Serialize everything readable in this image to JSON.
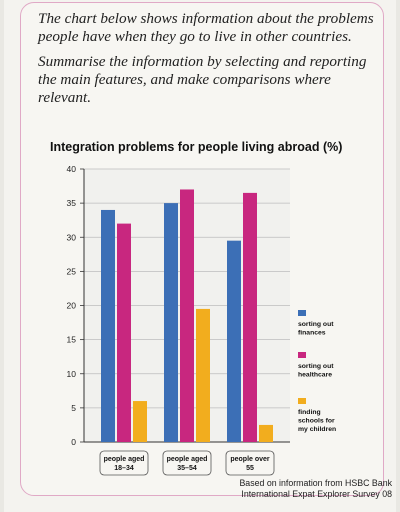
{
  "prompt": {
    "paragraph1": "The chart below shows information about the problems people have when they go to live in other countries.",
    "paragraph2": "Summarise the information by selecting and reporting the main features, and make comparisons where relevant."
  },
  "chart_data": {
    "type": "bar",
    "title": "Integration problems for people living abroad (%)",
    "xlabel": "",
    "ylabel": "",
    "ylim": [
      0,
      40
    ],
    "yticks": [
      0,
      5,
      10,
      15,
      20,
      25,
      30,
      35,
      40
    ],
    "categories": [
      "people aged 18–34",
      "people aged 35–54",
      "people over 55"
    ],
    "series": [
      {
        "name": "sorting out finances",
        "color": "#3c6fb6",
        "values": [
          34,
          35,
          29.5
        ]
      },
      {
        "name": "sorting out healthcare",
        "color": "#c8277f",
        "values": [
          32,
          37,
          36.5
        ]
      },
      {
        "name": "finding schools for my children",
        "color": "#f2ad1e",
        "values": [
          6,
          19.5,
          2.5
        ]
      }
    ],
    "grid": true,
    "legend_position": "right"
  },
  "source": {
    "line1": "Based on information from HSBC Bank",
    "line2": "International Expat Explorer Survey 08"
  }
}
